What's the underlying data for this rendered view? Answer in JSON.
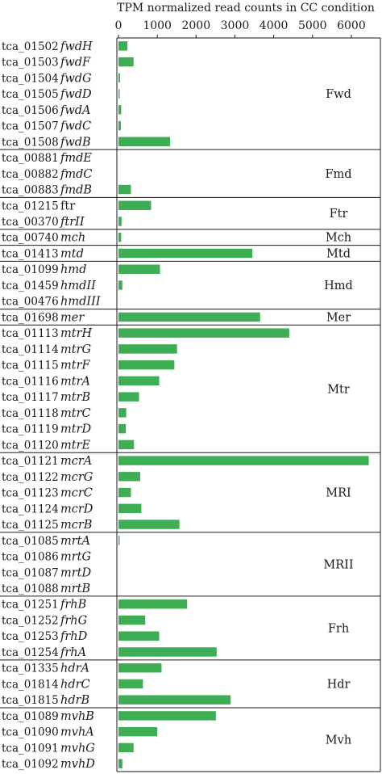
{
  "chart_data": {
    "type": "bar",
    "orientation": "horizontal",
    "title": "TPM normalized read counts in CC condition",
    "xlim": [
      0,
      6500
    ],
    "xticks": [
      0,
      1000,
      2000,
      3000,
      4000,
      5000,
      6000
    ],
    "bar_color": "#3dae54",
    "grid": false,
    "groups": [
      {
        "name": "Fwd",
        "rows": [
          {
            "id": "tca_01502",
            "gene": "fwdH",
            "value": 230
          },
          {
            "id": "tca_01503",
            "gene": "fwdF",
            "value": 390
          },
          {
            "id": "tca_01504",
            "gene": "fwdG",
            "value": 40
          },
          {
            "id": "tca_01505",
            "gene": "fwdD",
            "value": 30
          },
          {
            "id": "tca_01506",
            "gene": "fwdA",
            "value": 70
          },
          {
            "id": "tca_01507",
            "gene": "fwdC",
            "value": 60
          },
          {
            "id": "tca_01508",
            "gene": "fwdB",
            "value": 1330
          }
        ]
      },
      {
        "name": "Fmd",
        "rows": [
          {
            "id": "tca_00881",
            "gene": "fmdE",
            "value": 0
          },
          {
            "id": "tca_00882",
            "gene": "fmdC",
            "value": 0
          },
          {
            "id": "tca_00883",
            "gene": "fmdB",
            "value": 320
          }
        ]
      },
      {
        "name": "Ftr",
        "rows": [
          {
            "id": "tca_01215",
            "gene": "ftr",
            "gene_italic": false,
            "value": 840
          },
          {
            "id": "tca_00370",
            "gene": "ftrII",
            "value": 80
          }
        ]
      },
      {
        "name": "Mch",
        "rows": [
          {
            "id": "tca_00740",
            "gene": "mch",
            "value": 70
          }
        ]
      },
      {
        "name": "Mtd",
        "rows": [
          {
            "id": "tca_01413",
            "gene": "mtd",
            "value": 3450
          }
        ]
      },
      {
        "name": "Hmd",
        "rows": [
          {
            "id": "tca_01099",
            "gene": "hmd",
            "value": 1070
          },
          {
            "id": "tca_01459",
            "gene": "hmdII",
            "value": 100
          },
          {
            "id": "tca_00476",
            "gene": "hmdIII",
            "value": 0
          }
        ]
      },
      {
        "name": "Mer",
        "rows": [
          {
            "id": "tca_01698",
            "gene": "mer",
            "value": 3650
          }
        ]
      },
      {
        "name": "Mtr",
        "rows": [
          {
            "id": "tca_01113",
            "gene": "mtrH",
            "value": 4400
          },
          {
            "id": "tca_01114",
            "gene": "mtrG",
            "value": 1510
          },
          {
            "id": "tca_01115",
            "gene": "mtrF",
            "value": 1440
          },
          {
            "id": "tca_01116",
            "gene": "mtrA",
            "value": 1050
          },
          {
            "id": "tca_01117",
            "gene": "mtrB",
            "value": 530
          },
          {
            "id": "tca_01118",
            "gene": "mtrC",
            "value": 200
          },
          {
            "id": "tca_01119",
            "gene": "mtrD",
            "value": 190
          },
          {
            "id": "tca_01120",
            "gene": "mtrE",
            "value": 400
          }
        ]
      },
      {
        "name": "MRI",
        "rows": [
          {
            "id": "tca_01121",
            "gene": "mcrA",
            "value": 6450
          },
          {
            "id": "tca_01122",
            "gene": "mcrG",
            "value": 560
          },
          {
            "id": "tca_01123",
            "gene": "mcrC",
            "value": 320
          },
          {
            "id": "tca_01124",
            "gene": "mcrD",
            "value": 590
          },
          {
            "id": "tca_01125",
            "gene": "mcrB",
            "value": 1570
          }
        ]
      },
      {
        "name": "MRII",
        "rows": [
          {
            "id": "tca_01085",
            "gene": "mrtA",
            "value": 30
          },
          {
            "id": "tca_01086",
            "gene": "mrtG",
            "value": 0
          },
          {
            "id": "tca_01087",
            "gene": "mrtD",
            "value": 0
          },
          {
            "id": "tca_01088",
            "gene": "mrtB",
            "value": 0
          }
        ]
      },
      {
        "name": "Frh",
        "rows": [
          {
            "id": "tca_01251",
            "gene": "frhB",
            "value": 1770
          },
          {
            "id": "tca_01252",
            "gene": "frhG",
            "value": 690
          },
          {
            "id": "tca_01253",
            "gene": "frhD",
            "value": 1050
          },
          {
            "id": "tca_01254",
            "gene": "frhA",
            "value": 2530
          }
        ]
      },
      {
        "name": "Hdr",
        "rows": [
          {
            "id": "tca_01335",
            "gene": "hdrA",
            "value": 1110
          },
          {
            "id": "tca_01814",
            "gene": "hdrC",
            "value": 630
          },
          {
            "id": "tca_01815",
            "gene": "hdrB",
            "value": 2890
          }
        ]
      },
      {
        "name": "Mvh",
        "rows": [
          {
            "id": "tca_01089",
            "gene": "mvhB",
            "value": 2510
          },
          {
            "id": "tca_01090",
            "gene": "mvhA",
            "value": 1000
          },
          {
            "id": "tca_01091",
            "gene": "mvhG",
            "value": 390
          },
          {
            "id": "tca_01092",
            "gene": "mvhD",
            "value": 100
          }
        ]
      }
    ]
  }
}
